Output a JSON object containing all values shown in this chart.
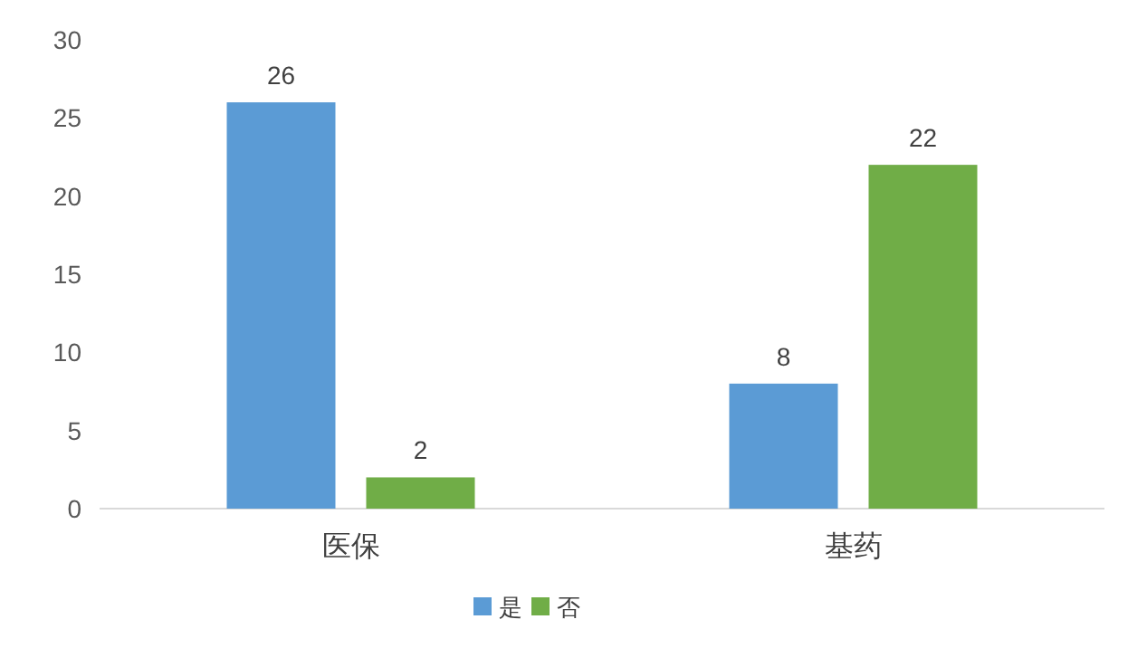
{
  "chart_data": {
    "type": "bar",
    "categories": [
      "医保",
      "基药"
    ],
    "series": [
      {
        "name": "是",
        "color": "#5b9bd5",
        "values": [
          26,
          8
        ]
      },
      {
        "name": "否",
        "color": "#70ad47",
        "values": [
          2,
          22
        ]
      }
    ],
    "ylim": [
      0,
      30
    ],
    "yticks": [
      0,
      5,
      10,
      15,
      20,
      25,
      30
    ],
    "grid": false,
    "legend": "bottom",
    "data_labels": true
  }
}
